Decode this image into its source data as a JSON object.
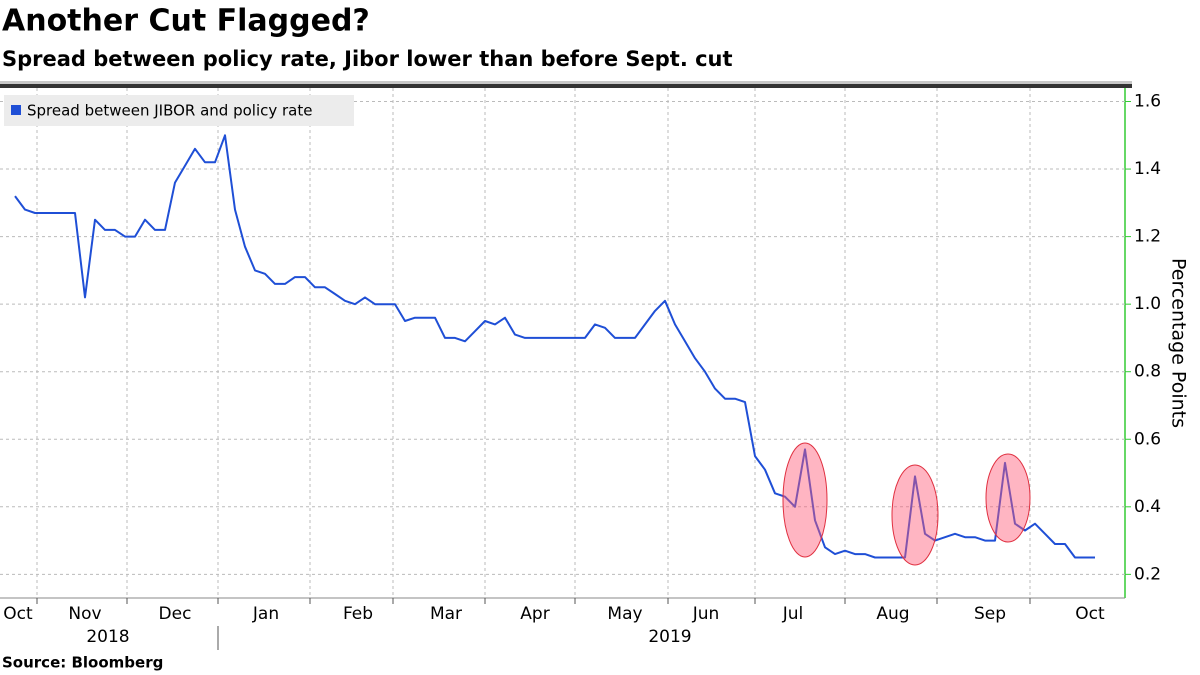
{
  "chart_data": {
    "type": "line",
    "title": "Another Cut Flagged?",
    "subtitle": "Spread between policy rate, Jibor lower than before Sept. cut",
    "source": "Source: Bloomberg",
    "y_label": "Percentage Points",
    "x_labels": [
      "Oct",
      "Nov",
      "Dec",
      "Jan",
      "Feb",
      "Mar",
      "Apr",
      "May",
      "Jun",
      "Jul",
      "Aug",
      "Sep",
      "Oct"
    ],
    "year_labels": [
      "2018",
      "2019"
    ],
    "ylim": [
      0.13,
      1.64
    ],
    "yticks": [
      0.2,
      0.4,
      0.6,
      0.8,
      {
        "value": 1,
        "label": "1.0"
      },
      1.2,
      1.4,
      1.6
    ],
    "grid": true,
    "series": [
      {
        "name": "Spread between JIBOR and policy rate",
        "color": "#1f4fd6",
        "values": [
          1.32,
          1.28,
          1.27,
          1.27,
          1.27,
          1.27,
          1.27,
          1.02,
          1.25,
          1.22,
          1.22,
          1.2,
          1.2,
          1.25,
          1.22,
          1.22,
          1.36,
          1.41,
          1.46,
          1.42,
          1.42,
          1.5,
          1.28,
          1.17,
          1.1,
          1.09,
          1.06,
          1.06,
          1.08,
          1.08,
          1.05,
          1.05,
          1.03,
          1.01,
          1.0,
          1.02,
          1.0,
          1.0,
          1.0,
          0.95,
          0.96,
          0.96,
          0.96,
          0.9,
          0.9,
          0.89,
          0.92,
          0.95,
          0.94,
          0.96,
          0.91,
          0.9,
          0.9,
          0.9,
          0.9,
          0.9,
          0.9,
          0.9,
          0.94,
          0.93,
          0.9,
          0.9,
          0.9,
          0.94,
          0.98,
          1.01,
          0.94,
          0.89,
          0.84,
          0.8,
          0.75,
          0.72,
          0.72,
          0.71,
          0.55,
          0.51,
          0.44,
          0.43,
          0.4,
          0.57,
          0.36,
          0.28,
          0.26,
          0.27,
          0.26,
          0.26,
          0.25,
          0.25,
          0.25,
          0.25,
          0.49,
          0.32,
          0.3,
          0.31,
          0.32,
          0.31,
          0.31,
          0.3,
          0.3,
          0.53,
          0.35,
          0.33,
          0.35,
          0.32,
          0.29,
          0.29,
          0.25,
          0.25,
          0.25
        ]
      }
    ]
  }
}
